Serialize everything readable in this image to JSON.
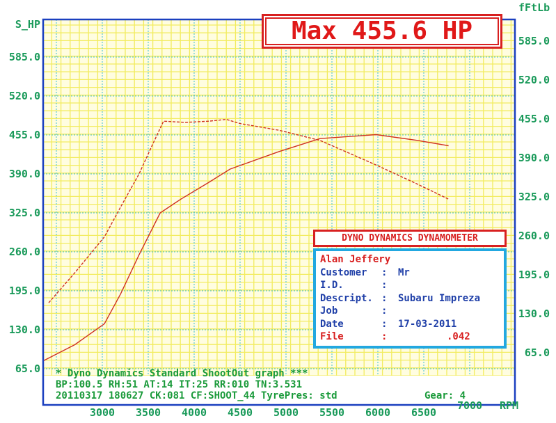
{
  "chart_data": {
    "type": "line",
    "title": "Max 455.6 HP",
    "ylabel_left": "S_HP",
    "ylabel_right": "fFtLb",
    "xlabel": "RPM",
    "x_ticks": [
      3000,
      3500,
      4000,
      4500,
      5000,
      5500,
      6000,
      6500,
      7000
    ],
    "y_ticks_left": [
      "65.0",
      "130.0",
      "195.0",
      "260.0",
      "325.0",
      "390.0",
      "455.0",
      "520.0",
      "585.0"
    ],
    "y_ticks_right": [
      "65.0",
      "130.0",
      "195.0",
      "260.0",
      "325.0",
      "390.0",
      "455.0",
      "520.0",
      "585.0"
    ],
    "xlim": [
      2350,
      7500
    ],
    "ylim": [
      65,
      648
    ],
    "grid": true,
    "series": [
      {
        "style": "solid",
        "color": "#d03020",
        "x": [
          2356,
          2700,
          3023,
          3200,
          3400,
          3630,
          3856,
          4160,
          4390,
          4920,
          5370,
          5980,
          6430,
          6770
        ],
        "y": [
          78,
          105,
          140,
          190,
          255,
          325,
          348,
          376,
          398,
          427,
          449,
          455.6,
          446,
          437
        ]
      },
      {
        "style": "dashed",
        "color": "#d03020",
        "x": [
          2417,
          2700,
          3023,
          3200,
          3400,
          3550,
          3667,
          3900,
          4160,
          4350,
          4500,
          4920,
          5370,
          5980,
          6430,
          6770
        ],
        "y": [
          175,
          225,
          285,
          335,
          390,
          440,
          478,
          476,
          478,
          481,
          474,
          463,
          446,
          405,
          373,
          348
        ]
      }
    ]
  },
  "max_label": "Max 455.6 HP",
  "info_lines": [
    "* Dyno Dynamics Standard ShootOut graph ***",
    "BP:100.5 RH:51 AT:14 IT:25  RR:010 TN:3.531",
    "20110317 180627 CK:081 CF:SHOOT_44 TyrePres: std"
  ],
  "gear": "Gear: 4",
  "card": {
    "title": "DYNO DYNAMICS DYNAMOMETER",
    "operator": "Alan Jeffery",
    "fields": [
      {
        "key": "Customer",
        "value": "Mr"
      },
      {
        "key": "I.D.",
        "value": ""
      },
      {
        "key": "Descript.",
        "value": "Subaru Impreza"
      },
      {
        "key": "Job",
        "value": ""
      },
      {
        "key": "Date",
        "value": "17-03-2011"
      }
    ],
    "file_key": "File",
    "file_value": ".042"
  },
  "colors": {
    "grid_minor": "#f2ec60",
    "grid_major": "#3cc0d8",
    "border": "#1a3fbf",
    "axis_text": "#1a9a5a",
    "curve": "#d03020",
    "background": "#fffde0"
  }
}
